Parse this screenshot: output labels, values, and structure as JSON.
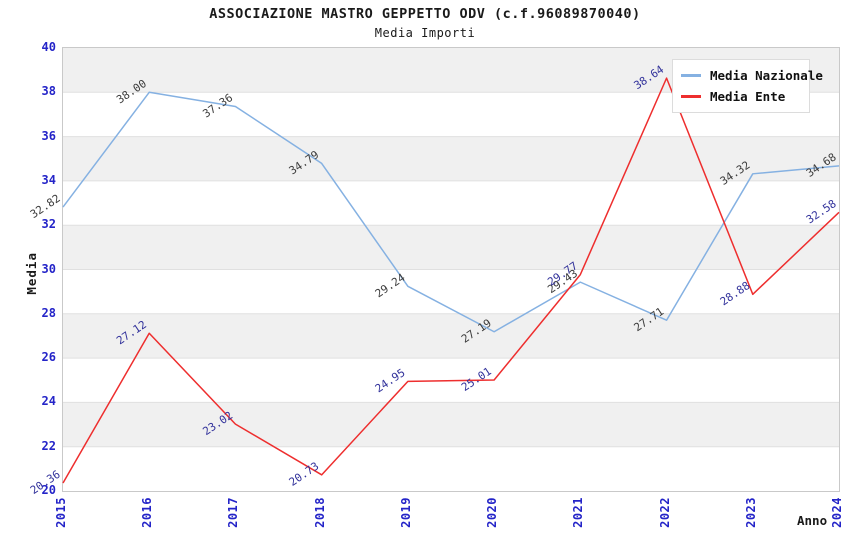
{
  "header": {
    "title": "ASSOCIAZIONE MASTRO GEPPETTO ODV (c.f.96089870040)",
    "subtitle": "Media Importi"
  },
  "colors": {
    "nazionale_line": "#85b1e2",
    "ente_line": "#ee2e2e",
    "tick_text": "#2424c8",
    "nazionale_label_text": "#3c3c3c",
    "ente_label_text": "#32329b",
    "band_gray": "#f0f0f0",
    "band_white": "#ffffff",
    "gridline": "#e0e0e0",
    "plot_border": "#c9c9c9"
  },
  "chart_data": {
    "type": "line",
    "title": "ASSOCIAZIONE MASTRO GEPPETTO ODV (c.f.96089870040)",
    "subtitle": "Media Importi",
    "xlabel": "Anno",
    "ylabel": "Media",
    "x": [
      2015,
      2016,
      2017,
      2018,
      2019,
      2020,
      2021,
      2022,
      2023,
      2024
    ],
    "ylim": [
      20,
      40
    ],
    "ytick_step": 2,
    "grid": true,
    "banded_background": true,
    "legend_position": "top-right",
    "series": [
      {
        "name": "Media Nazionale",
        "color": "#85b1e2",
        "label_color": "#3c3c3c",
        "values": [
          32.82,
          38.0,
          37.36,
          34.79,
          29.24,
          27.19,
          29.43,
          27.71,
          34.32,
          34.68
        ]
      },
      {
        "name": "Media Ente",
        "color": "#ee2e2e",
        "label_color": "#32329b",
        "values": [
          20.36,
          27.12,
          23.02,
          20.73,
          24.95,
          25.01,
          29.77,
          38.64,
          28.88,
          32.58
        ]
      }
    ]
  }
}
